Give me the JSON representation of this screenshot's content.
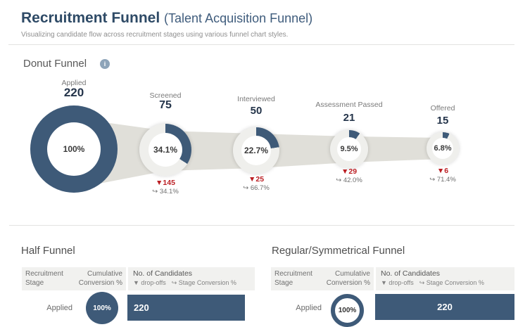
{
  "page": {
    "title": "Recruitment Funnel",
    "title_suffix": "(Talent Acquisition Funnel)",
    "subtitle": "Visualizing candidate flow across recruitment stages using various funnel chart styles."
  },
  "colors": {
    "navy": "#3e5a78",
    "red": "#bb1e23",
    "ring_bg": "#efefec",
    "ribbon": "#e0dfd9",
    "header_band": "#f1f1ef",
    "info_icon": "#8ea4b9"
  },
  "donut_funnel": {
    "title": "Donut Funnel",
    "info_icon": "info-icon",
    "stages": [
      {
        "label": "Applied",
        "value": "220",
        "pct": "100%",
        "pct_value": 100,
        "drop": null,
        "stage_conv": null
      },
      {
        "label": "Screened",
        "value": "75",
        "pct": "34.1%",
        "pct_value": 34.1,
        "drop": "▼145",
        "stage_conv": "↪ 34.1%"
      },
      {
        "label": "Interviewed",
        "value": "50",
        "pct": "22.7%",
        "pct_value": 22.7,
        "drop": "▼25",
        "stage_conv": "↪ 66.7%"
      },
      {
        "label": "Assessment Passed",
        "value": "21",
        "pct": "9.5%",
        "pct_value": 9.5,
        "drop": "▼29",
        "stage_conv": "↪ 42.0%"
      },
      {
        "label": "Offered",
        "value": "15",
        "pct": "6.8%",
        "pct_value": 6.8,
        "drop": "▼6",
        "stage_conv": "↪ 71.4%"
      }
    ]
  },
  "half_funnel": {
    "title": "Half Funnel",
    "columns": {
      "col1a": "Recruitment",
      "col1b": "Stage",
      "col2a": "Cumulative",
      "col2b": "Conversion %",
      "col3": "No. of Candidates",
      "col3_sub_drop": "▼ drop-offs",
      "col3_sub_conv": "↪ Stage Conversion %"
    },
    "row": {
      "stage": "Applied",
      "badge": "100%",
      "value": "220"
    }
  },
  "regular_funnel": {
    "title": "Regular/Symmetrical Funnel",
    "columns": {
      "col1a": "Recruitment",
      "col1b": "Stage",
      "col2a": "Cumulative",
      "col2b": "Conversion %",
      "col3": "No. of Candidates",
      "col3_sub_drop": "▼ drop-offs",
      "col3_sub_conv": "↪ Stage Conversion %"
    },
    "row": {
      "stage": "Applied",
      "badge": "100%",
      "value": "220"
    }
  },
  "chart_data": [
    {
      "type": "pie",
      "title": "Donut Funnel",
      "categories": [
        "Applied",
        "Screened",
        "Interviewed",
        "Assessment Passed",
        "Offered"
      ],
      "series": [
        {
          "name": "No. of Candidates",
          "values": [
            220,
            75,
            50,
            21,
            15
          ]
        },
        {
          "name": "Cumulative Conversion %",
          "values": [
            100,
            34.1,
            22.7,
            9.5,
            6.8
          ]
        },
        {
          "name": "Drop-offs",
          "values": [
            null,
            145,
            25,
            29,
            6
          ]
        },
        {
          "name": "Stage Conversion %",
          "values": [
            null,
            34.1,
            66.7,
            42.0,
            71.4
          ]
        }
      ],
      "legend_position": "none",
      "notes": "Each stage rendered as a donut whose filled arc equals cumulative conversion %; gray ribbon shows candidate flow between stages"
    },
    {
      "type": "table",
      "title": "Half Funnel",
      "columns": [
        "Recruitment Stage",
        "Cumulative Conversion %",
        "No. of Candidates"
      ],
      "rows": [
        [
          "Applied",
          "100%",
          "220"
        ]
      ]
    },
    {
      "type": "table",
      "title": "Regular/Symmetrical Funnel",
      "columns": [
        "Recruitment Stage",
        "Cumulative Conversion %",
        "No. of Candidates"
      ],
      "rows": [
        [
          "Applied",
          "100%",
          "220"
        ]
      ]
    }
  ]
}
